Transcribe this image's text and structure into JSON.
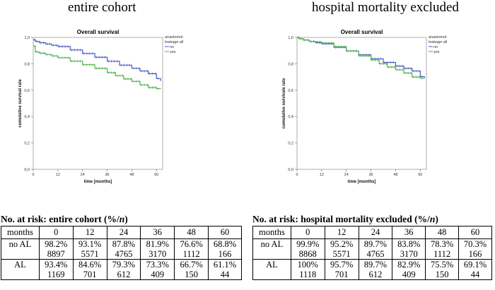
{
  "panels": [
    {
      "heading": "entire cohort",
      "chart_data": {
        "type": "line",
        "title": "Overall survival",
        "xlabel": "time [months]",
        "ylabel": "cumulative survival rate",
        "xlim": [
          0,
          63
        ],
        "ylim": [
          0,
          1.0
        ],
        "x_ticks": [
          "0",
          "12",
          "24",
          "36",
          "48",
          "60"
        ],
        "y_ticks": [
          "0,0",
          "0,2",
          "0,4",
          "0,6",
          "0,8",
          "1,0"
        ],
        "legend_title": [
          "anastomotic",
          "leakage all"
        ],
        "legend_position": "top-right",
        "series": [
          {
            "name": "no",
            "color": "#4a5bc4",
            "x": [
              0,
              1,
              3,
              6,
              9,
              12,
              18,
              24,
              30,
              36,
              42,
              48,
              52,
              56,
              60,
              62
            ],
            "y": [
              0.982,
              0.97,
              0.96,
              0.95,
              0.94,
              0.931,
              0.905,
              0.878,
              0.85,
              0.819,
              0.79,
              0.766,
              0.745,
              0.725,
              0.688,
              0.67
            ]
          },
          {
            "name": "yes",
            "color": "#4fb24f",
            "x": [
              0,
              1,
              3,
              6,
              9,
              12,
              18,
              24,
              30,
              36,
              40,
              44,
              48,
              52,
              56,
              60,
              62
            ],
            "y": [
              0.934,
              0.89,
              0.88,
              0.87,
              0.86,
              0.846,
              0.82,
              0.793,
              0.765,
              0.733,
              0.71,
              0.685,
              0.667,
              0.64,
              0.62,
              0.611,
              0.61
            ]
          }
        ]
      }
    },
    {
      "heading": "hospital mortality excluded",
      "chart_data": {
        "type": "line",
        "title": "Overall survival",
        "xlabel": "time [months]",
        "ylabel": "cumulative survivale rate",
        "xlim": [
          0,
          63
        ],
        "ylim": [
          0,
          1.0
        ],
        "x_ticks": [
          "0",
          "12",
          "24",
          "36",
          "48",
          "60"
        ],
        "y_ticks": [
          "0,0",
          "0,2",
          "0,4",
          "0,6",
          "0,8",
          "1,0"
        ],
        "legend_title": [
          "anastomotic",
          "leakage all"
        ],
        "legend_position": "top-right",
        "series": [
          {
            "name": "no",
            "color": "#4a5bc4",
            "x": [
              0,
              1,
              3,
              6,
              9,
              12,
              18,
              24,
              30,
              36,
              42,
              48,
              52,
              56,
              60,
              62
            ],
            "y": [
              0.999,
              0.99,
              0.98,
              0.97,
              0.96,
              0.952,
              0.925,
              0.897,
              0.868,
              0.838,
              0.81,
              0.783,
              0.765,
              0.745,
              0.703,
              0.69
            ]
          },
          {
            "name": "yes",
            "color": "#4fb24f",
            "x": [
              0,
              1,
              3,
              6,
              9,
              12,
              18,
              24,
              30,
              36,
              40,
              44,
              48,
              52,
              56,
              60,
              62
            ],
            "y": [
              1.0,
              0.99,
              0.98,
              0.97,
              0.965,
              0.957,
              0.93,
              0.897,
              0.86,
              0.829,
              0.8,
              0.775,
              0.755,
              0.73,
              0.7,
              0.691,
              0.69
            ]
          }
        ]
      }
    }
  ],
  "tables": [
    {
      "title_prefix": "No. at risk: entire cohort (%/",
      "title_italic": "n",
      "title_suffix": ")",
      "header": [
        "months",
        "0",
        "12",
        "24",
        "36",
        "48",
        "60"
      ],
      "rows": [
        {
          "label": "no AL",
          "pct": [
            "98.2%",
            "93.1%",
            "87.8%",
            "81.9%",
            "76.6%",
            "68.8%"
          ],
          "n": [
            "8897",
            "5571",
            "4765",
            "3170",
            "1112",
            "166"
          ]
        },
        {
          "label": "AL",
          "pct": [
            "93.4%",
            "84.6%",
            "79.3%",
            "73.3%",
            "66.7%",
            "61.1%"
          ],
          "n": [
            "1169",
            "701",
            "612",
            "409",
            "150",
            "44"
          ]
        }
      ]
    },
    {
      "title_prefix": "No. at risk: hospital mortality excluded (%/",
      "title_italic": "n",
      "title_suffix": ")",
      "header": [
        "months",
        "0",
        "12",
        "24",
        "36",
        "48",
        "60"
      ],
      "rows": [
        {
          "label": "no AL",
          "pct": [
            "99.9%",
            "95.2%",
            "89.7%",
            "83.8%",
            "78.3%",
            "70.3%"
          ],
          "n": [
            "8868",
            "5571",
            "4765",
            "3170",
            "1112",
            "166"
          ]
        },
        {
          "label": "AL",
          "pct": [
            "100%",
            "95.7%",
            "89.7%",
            "82.9%",
            "75.5%",
            "69.1%"
          ],
          "n": [
            "1118",
            "701",
            "612",
            "409",
            "150",
            "44"
          ]
        }
      ]
    }
  ]
}
